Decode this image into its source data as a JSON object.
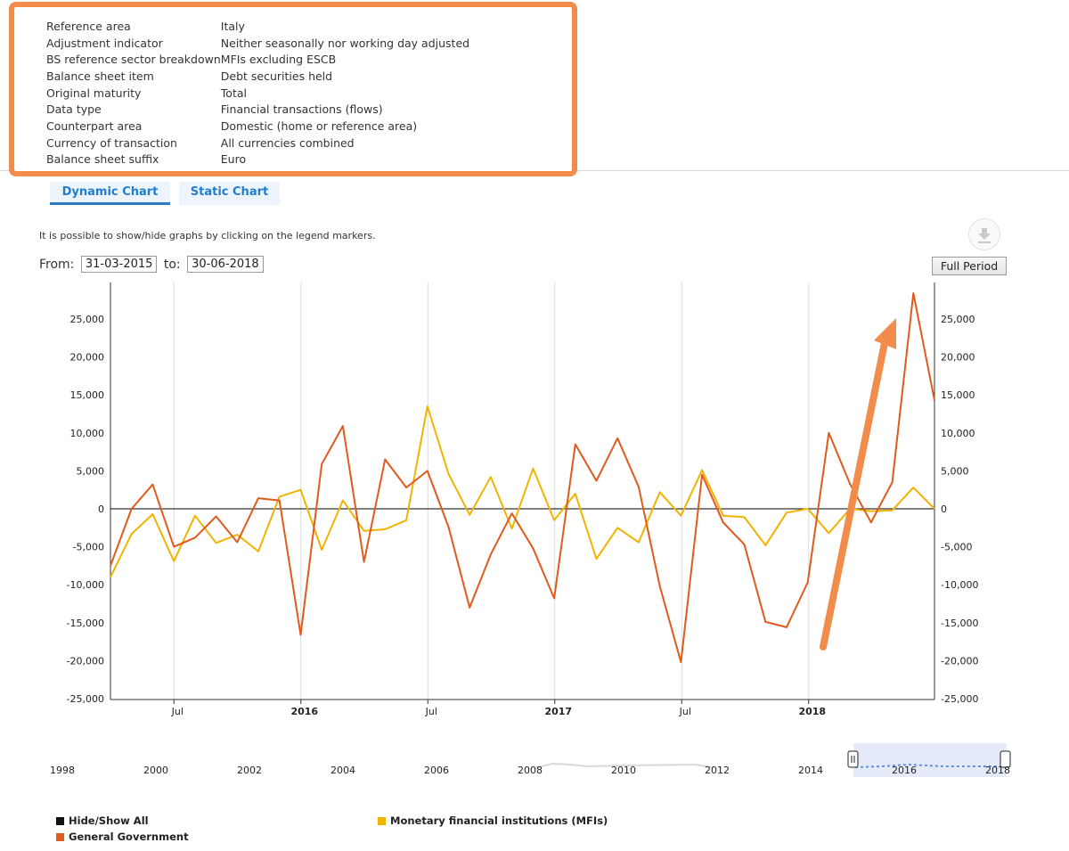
{
  "meta": {
    "rows": [
      {
        "key": "Reference area",
        "value": "Italy"
      },
      {
        "key": "Adjustment indicator",
        "value": "Neither seasonally nor working day adjusted"
      },
      {
        "key": "BS reference sector breakdown",
        "value": "MFIs excluding ESCB"
      },
      {
        "key": "Balance sheet item",
        "value": "Debt securities held"
      },
      {
        "key": "Original maturity",
        "value": "Total"
      },
      {
        "key": "Data type",
        "value": "Financial transactions (flows)"
      },
      {
        "key": "Counterpart area",
        "value": "Domestic (home or reference area)"
      },
      {
        "key": "Currency of transaction",
        "value": "All currencies combined"
      },
      {
        "key": "Balance sheet suffix",
        "value": "Euro"
      }
    ]
  },
  "tabs": {
    "dynamic": "Dynamic Chart",
    "static": "Static Chart"
  },
  "hint": "It is possible to show/hide graphs by clicking on the legend markers.",
  "range": {
    "from_label": "From:",
    "from_value": "31-03-2015",
    "to_label": "to:",
    "to_value": "30-06-2018",
    "full_period": "Full Period"
  },
  "navigator": {
    "labels": [
      "1998",
      "2000",
      "2002",
      "2004",
      "2006",
      "2008",
      "2010",
      "2012",
      "2014",
      "2016",
      "2018"
    ]
  },
  "legend": {
    "hide_show_all": "Hide/Show All",
    "colors": {
      "hide_show_all": "#111111"
    }
  },
  "annotation": {
    "arrow_color": "#f28c4a"
  },
  "chart_data": {
    "type": "line",
    "x_ticks": [
      "Jul",
      "2016",
      "Jul",
      "2017",
      "Jul",
      "2018"
    ],
    "y_ticks": [
      "-25,000",
      "-20,000",
      "-15,000",
      "-10,000",
      "-5,000",
      "0",
      "5,000",
      "10,000",
      "15,000",
      "20,000",
      "25,000"
    ],
    "ylim": [
      -25000,
      28500
    ],
    "grid": "vertical",
    "legend_position": "bottom",
    "series": [
      {
        "name": "General Government",
        "color": "#e05a1c",
        "values": [
          -7500,
          0,
          3200,
          -5000,
          -3800,
          -1000,
          -4400,
          1400,
          1100,
          -16600,
          5900,
          10900,
          -7000,
          6500,
          2800,
          5000,
          -2400,
          -13000,
          -6000,
          -600,
          -5200,
          -11800,
          8500,
          3700,
          9300,
          2900,
          -10200,
          -20200,
          4500,
          -1800,
          -4700,
          -14900,
          -15600,
          -9700,
          10000,
          3300,
          -1800,
          3500,
          28400,
          14300
        ]
      },
      {
        "name": "Monetary financial institutions (MFIs)",
        "color": "#f0b400",
        "values": [
          -9000,
          -3300,
          -700,
          -6900,
          -900,
          -4500,
          -3400,
          -5600,
          1600,
          2500,
          -5400,
          1100,
          -2900,
          -2700,
          -1500,
          13500,
          4600,
          -800,
          4200,
          -2600,
          5300,
          -1500,
          2000,
          -6600,
          -2500,
          -4400,
          2200,
          -900,
          5100,
          -900,
          -1100,
          -4800,
          -500,
          0,
          -3200,
          0,
          -300,
          -200,
          2800,
          0
        ]
      }
    ]
  }
}
